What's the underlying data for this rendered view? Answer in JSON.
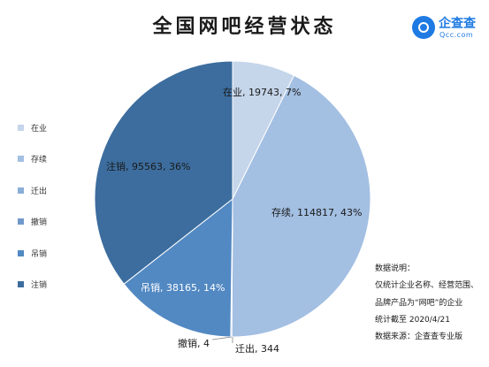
{
  "title": "全国网吧经营状态",
  "logo": {
    "name": "企查查",
    "domain": "Qcc.com"
  },
  "chart_data": {
    "type": "pie",
    "slices": [
      {
        "name": "在业",
        "value": 19743,
        "percent": "7%",
        "label": "在业, 19743, 7%",
        "color": "#c5d5ea"
      },
      {
        "name": "存续",
        "value": 114817,
        "percent": "43%",
        "label": "存续, 114817, 43%",
        "color": "#a3bfe2"
      },
      {
        "name": "迁出",
        "value": 344,
        "percent": "",
        "label": "迁出, 344",
        "color": "#8aaed8"
      },
      {
        "name": "撤销",
        "value": 4,
        "percent": "",
        "label": "撤销, 4",
        "color": "#7199cc"
      },
      {
        "name": "吊销",
        "value": 38165,
        "percent": "14%",
        "label": "吊销, 38165, 14%",
        "color": "#5289c3"
      },
      {
        "name": "注销",
        "value": 95563,
        "percent": "36%",
        "label": "注销, 95563, 36%",
        "color": "#3c6d9e"
      }
    ],
    "legend": [
      "在业",
      "存续",
      "迁出",
      "撤销",
      "吊销",
      "注销"
    ],
    "legend_position": "left"
  },
  "note": {
    "lines": [
      "数据说明：",
      "仅统计企业名称、经营范围、",
      "品牌产品为“网吧”的企业",
      "统计截至 2020/4/21",
      "数据来源：企查查专业版"
    ]
  }
}
